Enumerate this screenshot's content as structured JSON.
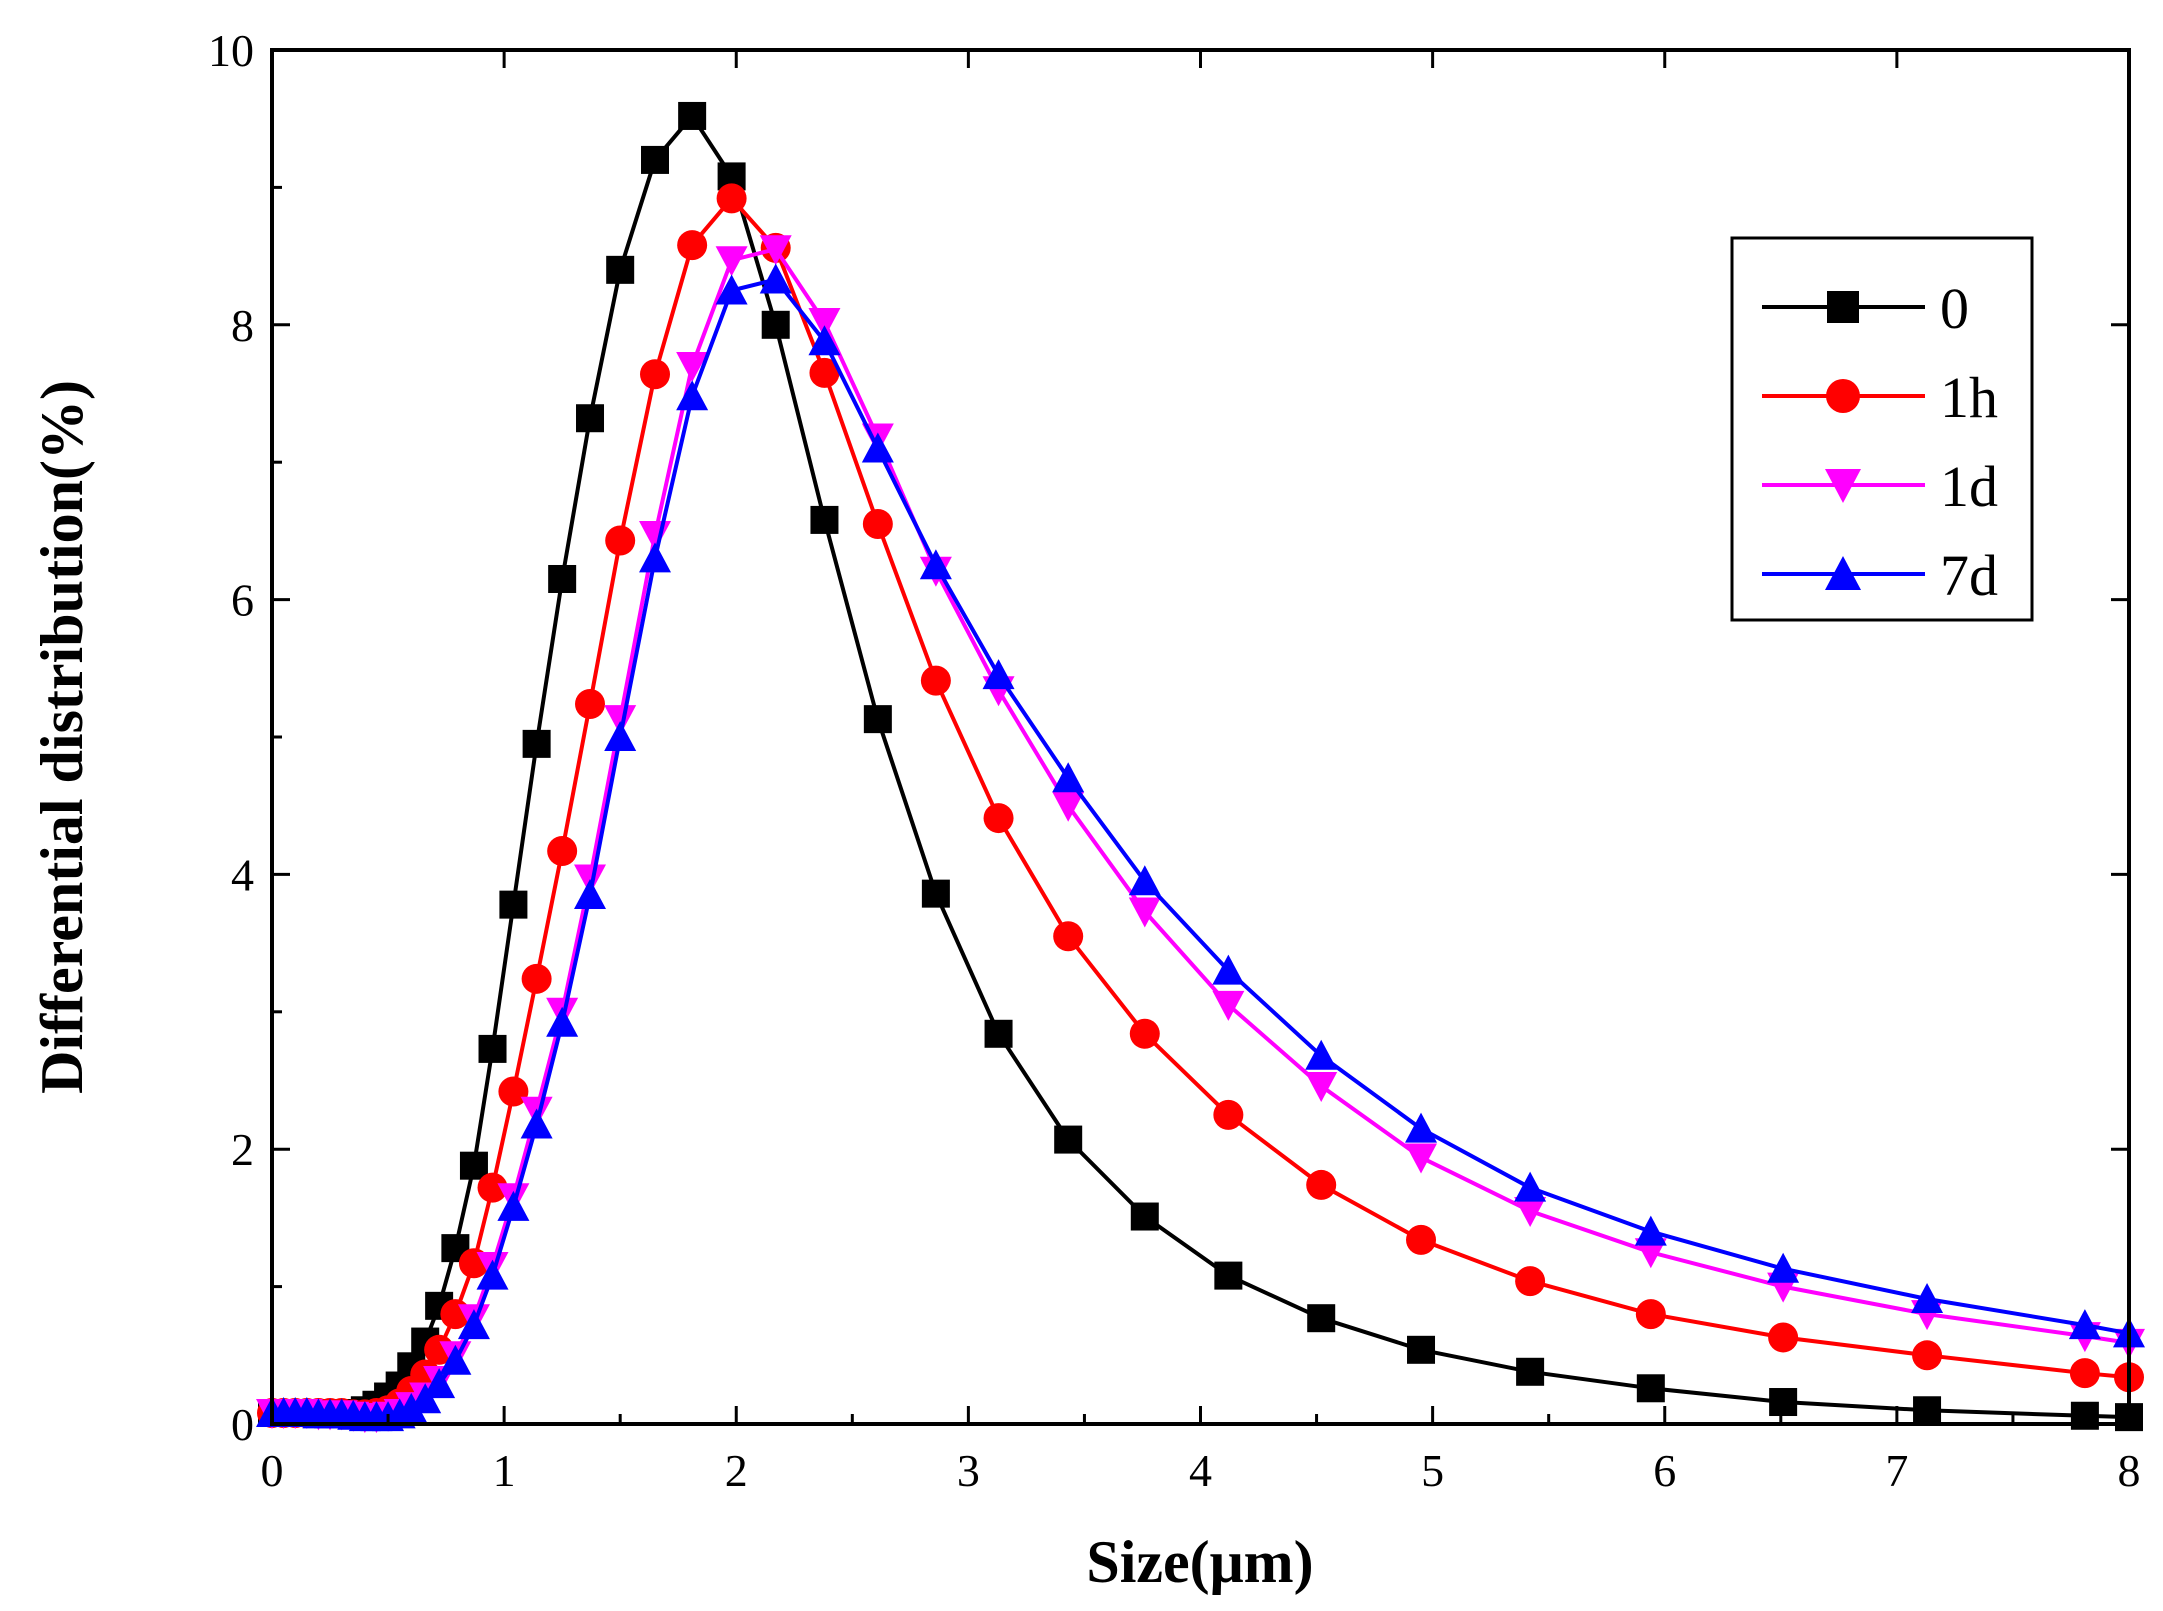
{
  "chart_data": {
    "type": "line",
    "title": "",
    "xlabel": "Size(μm)",
    "ylabel": "Differential distribution(%)",
    "xlim": [
      0,
      8
    ],
    "ylim": [
      0,
      10
    ],
    "xticks": [
      0,
      1,
      2,
      3,
      4,
      5,
      6,
      7,
      8
    ],
    "yticks": [
      0,
      2,
      4,
      6,
      8,
      10
    ],
    "grid": false,
    "legend_position": "top-right",
    "series": [
      {
        "name": "0",
        "color": "#000000",
        "marker": "square",
        "x": [
          0.0,
          0.05,
          0.1,
          0.15,
          0.2,
          0.25,
          0.3,
          0.35,
          0.4,
          0.45,
          0.5,
          0.55,
          0.6,
          0.66,
          0.72,
          0.79,
          0.87,
          0.95,
          1.04,
          1.14,
          1.25,
          1.37,
          1.5,
          1.65,
          1.81,
          1.98,
          2.17,
          2.38,
          2.61,
          2.86,
          3.13,
          3.43,
          3.76,
          4.12,
          4.52,
          4.95,
          5.42,
          5.94,
          6.51,
          7.13,
          7.81,
          8.0
        ],
        "y": [
          0.08,
          0.08,
          0.08,
          0.08,
          0.08,
          0.08,
          0.08,
          0.08,
          0.1,
          0.14,
          0.2,
          0.28,
          0.42,
          0.6,
          0.86,
          1.28,
          1.88,
          2.73,
          3.78,
          4.95,
          6.15,
          7.32,
          8.4,
          9.2,
          9.52,
          9.08,
          8.0,
          6.58,
          5.13,
          3.86,
          2.84,
          2.07,
          1.51,
          1.08,
          0.77,
          0.54,
          0.38,
          0.26,
          0.16,
          0.1,
          0.06,
          0.05
        ]
      },
      {
        "name": "1h",
        "color": "#ff0000",
        "marker": "circle",
        "x": [
          0.0,
          0.05,
          0.1,
          0.15,
          0.2,
          0.25,
          0.3,
          0.35,
          0.4,
          0.45,
          0.5,
          0.55,
          0.6,
          0.66,
          0.72,
          0.79,
          0.87,
          0.95,
          1.04,
          1.14,
          1.25,
          1.37,
          1.5,
          1.65,
          1.81,
          1.98,
          2.17,
          2.38,
          2.61,
          2.86,
          3.13,
          3.43,
          3.76,
          4.12,
          4.52,
          4.95,
          5.42,
          5.94,
          6.51,
          7.13,
          7.81,
          8.0
        ],
        "y": [
          0.08,
          0.08,
          0.08,
          0.08,
          0.08,
          0.08,
          0.08,
          0.07,
          0.07,
          0.08,
          0.1,
          0.15,
          0.24,
          0.36,
          0.54,
          0.8,
          1.17,
          1.72,
          2.42,
          3.24,
          4.17,
          5.24,
          6.43,
          7.64,
          8.58,
          8.92,
          8.56,
          7.65,
          6.55,
          5.41,
          4.41,
          3.55,
          2.84,
          2.25,
          1.74,
          1.34,
          1.04,
          0.8,
          0.63,
          0.5,
          0.37,
          0.34
        ]
      },
      {
        "name": "1d",
        "color": "#ff00ff",
        "marker": "triangle-down",
        "x": [
          0.0,
          0.05,
          0.1,
          0.15,
          0.2,
          0.25,
          0.3,
          0.35,
          0.4,
          0.45,
          0.5,
          0.55,
          0.6,
          0.66,
          0.72,
          0.79,
          0.87,
          0.95,
          1.04,
          1.14,
          1.25,
          1.37,
          1.5,
          1.65,
          1.81,
          1.98,
          2.17,
          2.38,
          2.61,
          2.86,
          3.13,
          3.43,
          3.76,
          4.12,
          4.52,
          4.95,
          5.42,
          5.94,
          6.51,
          7.13,
          7.81,
          8.0
        ],
        "y": [
          0.08,
          0.08,
          0.08,
          0.08,
          0.07,
          0.07,
          0.07,
          0.06,
          0.05,
          0.05,
          0.06,
          0.08,
          0.13,
          0.2,
          0.32,
          0.5,
          0.77,
          1.15,
          1.65,
          2.28,
          3.0,
          3.97,
          5.13,
          6.47,
          7.7,
          8.47,
          8.55,
          8.02,
          7.18,
          6.21,
          5.34,
          4.5,
          3.73,
          3.05,
          2.46,
          1.94,
          1.55,
          1.25,
          1.0,
          0.8,
          0.64,
          0.59
        ]
      },
      {
        "name": "7d",
        "color": "#0000ff",
        "marker": "triangle-up",
        "x": [
          0.0,
          0.05,
          0.1,
          0.15,
          0.2,
          0.25,
          0.3,
          0.35,
          0.4,
          0.45,
          0.5,
          0.55,
          0.6,
          0.66,
          0.72,
          0.79,
          0.87,
          0.95,
          1.04,
          1.14,
          1.25,
          1.37,
          1.5,
          1.65,
          1.81,
          1.98,
          2.17,
          2.38,
          2.61,
          2.86,
          3.13,
          3.43,
          3.76,
          4.12,
          4.52,
          4.95,
          5.42,
          5.94,
          6.51,
          7.13,
          7.81,
          8.0
        ],
        "y": [
          0.08,
          0.08,
          0.08,
          0.08,
          0.07,
          0.07,
          0.07,
          0.06,
          0.05,
          0.05,
          0.05,
          0.07,
          0.11,
          0.18,
          0.29,
          0.46,
          0.72,
          1.08,
          1.58,
          2.18,
          2.92,
          3.85,
          5.0,
          6.3,
          7.48,
          8.25,
          8.33,
          7.88,
          7.1,
          6.25,
          5.45,
          4.7,
          3.95,
          3.3,
          2.68,
          2.15,
          1.72,
          1.4,
          1.13,
          0.91,
          0.72,
          0.66
        ]
      }
    ]
  }
}
